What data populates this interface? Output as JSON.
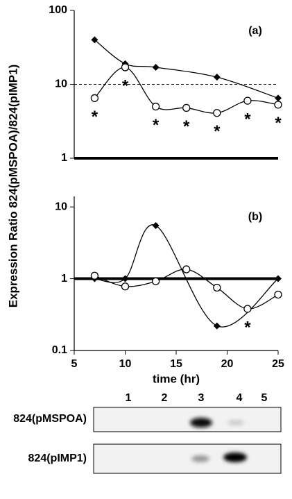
{
  "chart_data": [
    {
      "type": "line",
      "panel_label": "(a)",
      "yscale": "log",
      "xlim": [
        5,
        25
      ],
      "ylim": [
        1,
        100
      ],
      "yticks": [
        1,
        10,
        100
      ],
      "hlines": [
        {
          "y": 10,
          "style": "dashed"
        },
        {
          "y": 1,
          "style": "thick"
        }
      ],
      "series": [
        {
          "color": "#000000",
          "marker": "diamond",
          "x": [
            7,
            10,
            13,
            19,
            25
          ],
          "values": [
            40,
            19,
            17,
            12.5,
            6.5
          ]
        },
        {
          "color": "#000000",
          "marker": "circle",
          "x": [
            7,
            10,
            13,
            16,
            19,
            22,
            25
          ],
          "values": [
            6.5,
            17,
            5,
            4.8,
            4.1,
            6,
            5.3
          ]
        }
      ],
      "annotations": [
        {
          "x": 7,
          "text": "*"
        },
        {
          "x": 10,
          "text": "*"
        },
        {
          "x": 13,
          "text": "*"
        },
        {
          "x": 16,
          "text": "*"
        },
        {
          "x": 19,
          "text": "*"
        },
        {
          "x": 22,
          "text": "*"
        },
        {
          "x": 25,
          "text": "*"
        }
      ]
    },
    {
      "type": "line",
      "panel_label": "(b)",
      "yscale": "log",
      "xlim": [
        5,
        25
      ],
      "xticks": [
        5,
        10,
        15,
        20,
        25
      ],
      "x_label": "time (hr)",
      "ylim": [
        0.1,
        14
      ],
      "yticks": [
        0.1,
        1,
        10
      ],
      "hlines": [
        {
          "y": 1,
          "style": "thick"
        }
      ],
      "series": [
        {
          "color": "#000000",
          "marker": "diamond",
          "x": [
            7,
            10,
            13,
            19,
            25
          ],
          "values": [
            1.0,
            1.0,
            5.5,
            0.22,
            1.0
          ]
        },
        {
          "color": "#000000",
          "marker": "circle",
          "x": [
            7,
            10,
            13,
            16,
            19,
            22,
            25
          ],
          "values": [
            1.1,
            0.78,
            0.92,
            1.35,
            0.75,
            0.38,
            0.6
          ]
        }
      ],
      "annotations": [
        {
          "x": 22,
          "text": "*"
        }
      ]
    }
  ],
  "y_label": "Expression Ratio 824(pMSPOA)/824(pIMP1)",
  "gel": {
    "lanes": [
      "1",
      "2",
      "3",
      "4",
      "5"
    ],
    "rows": [
      "824(pMSPOA)",
      "824(pIMP1)"
    ]
  }
}
